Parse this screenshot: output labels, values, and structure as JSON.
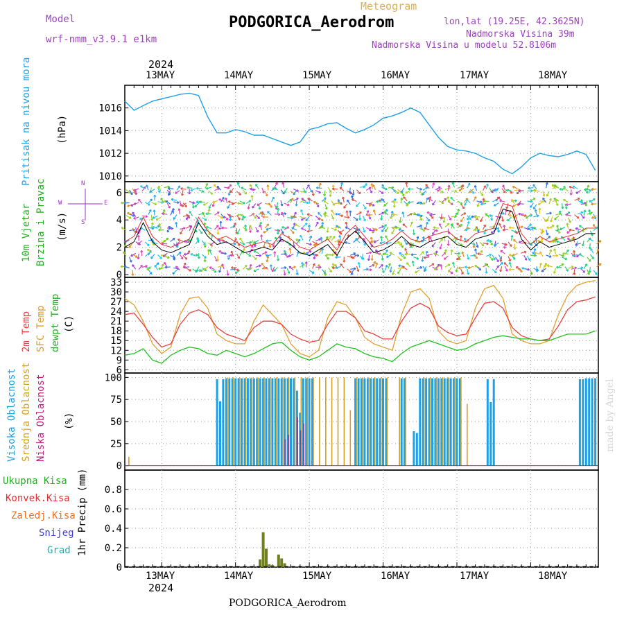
{
  "header": {
    "model_label": "Model",
    "model_name": "wrf-nmm_v3.9.1  e1km",
    "meteogram_label": "Meteogram",
    "station_title": "PODGORICA_Aerodrom",
    "lonlat": "lon,lat (19.25E, 42.3625N)",
    "elevation": "Nadmorska Visina 39m",
    "model_elevation": "Nadmorska Visina u modelu 52.8106m",
    "year_top": "2024",
    "year_bottom": "2024",
    "footer_title": "PODGORICA_Aerodrom",
    "watermark": "made by Angel"
  },
  "colors": {
    "pressure": "#1ea0e6",
    "t2m": "#e64040",
    "sfc": "#e0a030",
    "dewpt": "#20c020",
    "cloud_high": "#1ea0e6",
    "cloud_mid": "#d4a020",
    "cloud_low": "#c02080",
    "precip_total": "#20b020",
    "precip_conv": "#e03030",
    "precip_frozen": "#f07020",
    "precip_snow": "#4040d0",
    "precip_grad": "#20b0b0",
    "precip_bar": "#708020",
    "wind_line": "#000000",
    "wind_obs": "#e03030",
    "compass": "#a030c0"
  },
  "days": [
    "13MAY",
    "14MAY",
    "15MAY",
    "16MAY",
    "17MAY",
    "18MAY"
  ],
  "chart_data": [
    {
      "type": "line",
      "panel": "pressure",
      "ylabel_1": "Pritisak na nivou mora",
      "ylabel_2": "(hPa)",
      "ylim": [
        1009.5,
        1018
      ],
      "yticks": [
        1010,
        1012,
        1014,
        1016
      ],
      "x_hours_from": "13MAY 00h",
      "series": [
        {
          "x": [
            -12,
            -9,
            -6,
            -3,
            0,
            3,
            6,
            9,
            12,
            15,
            18,
            21,
            24,
            27,
            30,
            33,
            36,
            39,
            42,
            45,
            48,
            51,
            54,
            57,
            60,
            63,
            66,
            69,
            72,
            75,
            78,
            81,
            84,
            87,
            90,
            93,
            96,
            99,
            102,
            105,
            108,
            111,
            114,
            117,
            120,
            123,
            126,
            129,
            132,
            135,
            138,
            141
          ],
          "values": [
            1016.6,
            1015.8,
            1016.2,
            1016.6,
            1016.8,
            1017.0,
            1017.2,
            1017.3,
            1017.1,
            1015.2,
            1013.8,
            1013.8,
            1014.1,
            1013.9,
            1013.6,
            1013.6,
            1013.3,
            1013.0,
            1012.7,
            1013.0,
            1014.1,
            1014.3,
            1014.6,
            1014.7,
            1014.2,
            1013.8,
            1014.1,
            1014.5,
            1015.1,
            1015.3,
            1015.6,
            1016.0,
            1015.6,
            1014.5,
            1013.4,
            1012.6,
            1012.3,
            1012.2,
            1012.0,
            1011.6,
            1011.3,
            1010.6,
            1010.2,
            1010.8,
            1011.6,
            1012.0,
            1011.8,
            1011.7,
            1011.9,
            1012.2,
            1011.9,
            1010.5
          ]
        }
      ]
    },
    {
      "type": "line",
      "panel": "wind",
      "ylabel_1": "10m Vjetar",
      "ylabel_2": "Brzina i Pravac",
      "ylabel_3": "(m/s)",
      "compass_w": "W",
      "compass_e": "E",
      "compass_n": "N",
      "compass_s": "S",
      "ylim": [
        -0.2,
        6.8
      ],
      "yticks": [
        0,
        2,
        4,
        6
      ],
      "series": [
        {
          "x": [
            -12,
            -9,
            -6,
            -3,
            0,
            3,
            6,
            9,
            12,
            15,
            18,
            21,
            24,
            27,
            30,
            33,
            36,
            39,
            42,
            45,
            48,
            51,
            54,
            57,
            60,
            63,
            66,
            69,
            72,
            75,
            78,
            81,
            84,
            87,
            90,
            93,
            96,
            99,
            102,
            105,
            108,
            111,
            114,
            117,
            120,
            123,
            126,
            129,
            132,
            135,
            138,
            141
          ],
          "values": [
            2.0,
            2.4,
            3.8,
            2.4,
            1.8,
            1.6,
            1.9,
            2.2,
            3.8,
            2.8,
            2.2,
            2.4,
            2.0,
            1.6,
            1.8,
            2.0,
            1.8,
            2.6,
            2.2,
            1.6,
            1.4,
            1.8,
            2.2,
            1.4,
            2.6,
            3.2,
            2.4,
            1.6,
            1.8,
            2.2,
            2.8,
            2.2,
            2.0,
            2.4,
            2.6,
            2.8,
            2.2,
            2.0,
            2.6,
            2.8,
            3.0,
            4.8,
            4.6,
            2.6,
            1.8,
            2.4,
            2.0,
            2.2,
            2.4,
            2.6,
            3.0,
            3.0
          ]
        }
      ]
    },
    {
      "type": "line",
      "panel": "temperature",
      "ylabel_1": "2m Temp",
      "ylabel_2": "SFC Temp",
      "ylabel_3": "dewpt Temp",
      "ylabel_4": "(C)",
      "ylim": [
        5,
        34.5
      ],
      "yticks": [
        6,
        9,
        12,
        15,
        18,
        21,
        24,
        27,
        30,
        33
      ],
      "series": [
        {
          "name": "2m Temp",
          "x": [
            -12,
            -9,
            -6,
            -3,
            0,
            3,
            6,
            9,
            12,
            15,
            18,
            21,
            24,
            27,
            30,
            33,
            36,
            39,
            42,
            45,
            48,
            51,
            54,
            57,
            60,
            63,
            66,
            69,
            72,
            75,
            78,
            81,
            84,
            87,
            90,
            93,
            96,
            99,
            102,
            105,
            108,
            111,
            114,
            117,
            120,
            123,
            126,
            129,
            132,
            135,
            138,
            141
          ],
          "values": [
            23,
            23.5,
            20,
            16,
            13,
            14,
            20,
            23.5,
            24.5,
            23,
            19,
            17,
            16,
            15,
            19,
            21,
            21,
            20,
            17,
            15.5,
            14.5,
            15,
            20,
            24,
            24,
            22,
            18,
            17,
            15.5,
            15.5,
            21,
            25,
            26.5,
            25,
            19.5,
            17.5,
            16.5,
            17,
            22,
            26.5,
            27,
            25,
            19,
            16.5,
            15.5,
            15,
            15.5,
            19.5,
            24.5,
            27,
            27.5,
            28.5
          ]
        },
        {
          "name": "SFC Temp",
          "x": [
            -12,
            -9,
            -6,
            -3,
            0,
            3,
            6,
            9,
            12,
            15,
            18,
            21,
            24,
            27,
            30,
            33,
            36,
            39,
            42,
            45,
            48,
            51,
            54,
            57,
            60,
            63,
            66,
            69,
            72,
            75,
            78,
            81,
            84,
            87,
            90,
            93,
            96,
            99,
            102,
            105,
            108,
            111,
            114,
            117,
            120,
            123,
            126,
            129,
            132,
            135,
            138,
            141
          ],
          "values": [
            28,
            26,
            21,
            14,
            11,
            13,
            23,
            28,
            28.5,
            25,
            17,
            15,
            14,
            14,
            21,
            26,
            23,
            20,
            14,
            11,
            10,
            12,
            22,
            27,
            26,
            22,
            16,
            14,
            13,
            12,
            23,
            30,
            31,
            28,
            18,
            15,
            14,
            15,
            25,
            31,
            32,
            28,
            17,
            15,
            14,
            14,
            15,
            23,
            29,
            32,
            33,
            33.5
          ]
        },
        {
          "name": "dewpt Temp",
          "x": [
            -12,
            -9,
            -6,
            -3,
            0,
            3,
            6,
            9,
            12,
            15,
            18,
            21,
            24,
            27,
            30,
            33,
            36,
            39,
            42,
            45,
            48,
            51,
            54,
            57,
            60,
            63,
            66,
            69,
            72,
            75,
            78,
            81,
            84,
            87,
            90,
            93,
            96,
            99,
            102,
            105,
            108,
            111,
            114,
            117,
            120,
            123,
            126,
            129,
            132,
            135,
            138,
            141
          ],
          "values": [
            10.5,
            11,
            12.5,
            9,
            8,
            10.5,
            12,
            13,
            12.5,
            11,
            10.5,
            12,
            11,
            10,
            11,
            12.5,
            14,
            14.5,
            12,
            10,
            9,
            10,
            12,
            14,
            13,
            12.5,
            11,
            10,
            9.5,
            8.5,
            11,
            13,
            14,
            15,
            14,
            13,
            12,
            12.5,
            14,
            15,
            16,
            16.5,
            16,
            15.5,
            15.5,
            15,
            15,
            16,
            17,
            17,
            17,
            18
          ]
        }
      ]
    },
    {
      "type": "bar",
      "panel": "clouds",
      "ylabel_1": "Visoka Oblacnost",
      "ylabel_2": "Srednja Oblacnost",
      "ylabel_3": "Niska Oblacnost",
      "ylabel_4": "(%)",
      "ylim": [
        -5,
        105
      ],
      "yticks": [
        0,
        25,
        50,
        75,
        100
      ],
      "series": [
        {
          "name": "Visoka Oblacnost",
          "x": [
            18,
            19,
            20,
            21,
            22,
            23,
            24,
            25,
            26,
            27,
            28,
            29,
            30,
            31,
            32,
            33,
            34,
            35,
            36,
            37,
            38,
            39,
            40,
            41,
            42,
            43,
            44,
            45,
            46,
            47,
            48,
            49,
            63,
            64,
            65,
            66,
            67,
            68,
            69,
            70,
            71,
            72,
            73,
            78,
            79,
            82,
            83,
            84,
            85,
            86,
            87,
            88,
            89,
            90,
            91,
            92,
            93,
            94,
            95,
            96,
            97,
            106,
            107,
            108,
            136,
            137,
            138,
            139,
            140,
            141
          ],
          "values": [
            98,
            73,
            98,
            99,
            99,
            99,
            99,
            99,
            99,
            99,
            99,
            99,
            99,
            99,
            99,
            99,
            99,
            99,
            99,
            99,
            99,
            99,
            99,
            99,
            99,
            99,
            85,
            60,
            99,
            99,
            99,
            99,
            99,
            99,
            99,
            99,
            99,
            99,
            99,
            99,
            99,
            99,
            99,
            99,
            99,
            39,
            37,
            99,
            99,
            99,
            99,
            99,
            99,
            99,
            99,
            99,
            99,
            99,
            99,
            99,
            99,
            98,
            72,
            98,
            98,
            98,
            99,
            99,
            99,
            99
          ]
        },
        {
          "name": "Srednja Oblacnost",
          "x": [
            -11,
            21,
            23,
            25,
            27,
            29,
            31,
            33,
            35,
            37,
            39,
            41,
            43,
            45,
            47,
            49,
            51,
            53,
            55,
            57,
            59,
            61,
            63,
            65,
            67,
            69,
            71,
            73,
            77,
            79,
            85,
            87,
            89,
            91,
            93,
            95,
            97,
            99
          ],
          "values": [
            10,
            100,
            100,
            100,
            100,
            100,
            100,
            100,
            100,
            100,
            100,
            100,
            100,
            100,
            100,
            100,
            100,
            100,
            100,
            100,
            100,
            63,
            100,
            100,
            100,
            100,
            100,
            100,
            100,
            100,
            100,
            100,
            100,
            100,
            100,
            100,
            100,
            70
          ]
        },
        {
          "name": "Niska Oblacnost",
          "x": [
            40,
            41,
            44,
            45,
            46
          ],
          "values": [
            30,
            35,
            55,
            40,
            48
          ]
        }
      ]
    },
    {
      "type": "bar",
      "panel": "precip",
      "ylabel_1": "1hr Precip (mm)",
      "legend": [
        "Ukupna Kisa",
        "Konvek.Kisa",
        "Zaledj.Kisa",
        "Snijeg",
        "Grad"
      ],
      "ylim": [
        0,
        1.0
      ],
      "yticks": [
        0,
        0.2,
        0.4,
        0.6,
        0.8
      ],
      "series": [
        {
          "name": "Ukupna Kisa",
          "x": [
            32,
            33,
            34,
            35,
            36,
            37,
            38,
            39,
            40
          ],
          "values": [
            0.08,
            0.36,
            0.19,
            0.03,
            0.02,
            0.01,
            0.13,
            0.09,
            0.04
          ]
        }
      ]
    }
  ]
}
